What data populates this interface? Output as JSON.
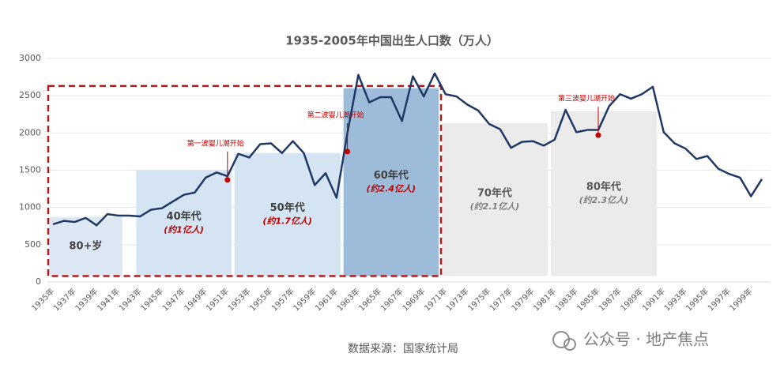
{
  "chart_data": {
    "type": "line",
    "title": "1935-2005年中国出生人口数（万人）",
    "source": "数据来源：国家统计局",
    "watermark": "公众号 · 地产焦点",
    "categories": [
      "1935年",
      null,
      "1937年",
      null,
      "1939年",
      null,
      "1941年",
      null,
      "1943年",
      null,
      "1945年",
      null,
      "1947年",
      null,
      "1949年",
      null,
      "1951年",
      null,
      "1953年",
      null,
      "1955年",
      null,
      "1957年",
      null,
      "1959年",
      null,
      "1961年",
      null,
      "1963年",
      null,
      "1965年",
      null,
      "1967年",
      null,
      "1969年",
      null,
      "1971年",
      null,
      "1973年",
      null,
      "1975年",
      null,
      "1977年",
      null,
      "1979年",
      null,
      "1981年",
      null,
      "1983年",
      null,
      "1985年",
      null,
      "1987年",
      null,
      "1989年",
      null,
      "1991年",
      null,
      "1993年",
      null,
      "1995年",
      null,
      "1997年",
      null,
      "1999年",
      null
    ],
    "series": [
      {
        "name": "出生人口",
        "color": "#1f3864",
        "values": [
          775,
          820,
          805,
          860,
          760,
          910,
          890,
          890,
          880,
          970,
          990,
          1080,
          1170,
          1200,
          1400,
          1470,
          1420,
          1720,
          1670,
          1850,
          1860,
          1730,
          1890,
          1730,
          1300,
          1460,
          1130,
          2000,
          2780,
          2410,
          2480,
          2480,
          2160,
          2760,
          2490,
          2800,
          2520,
          2490,
          2380,
          2300,
          2120,
          2050,
          1800,
          1880,
          1890,
          1830,
          1910,
          2310,
          2010,
          2040,
          2040,
          2360,
          2520,
          2460,
          2520,
          2620,
          2010,
          1860,
          1790,
          1650,
          1690,
          1520,
          1450,
          1400,
          1150,
          1380
        ]
      }
    ],
    "start_year": 1935,
    "ylim": [
      0,
      3000
    ],
    "yticks": [
      0,
      500,
      1000,
      1500,
      2000,
      2500,
      3000
    ],
    "grid": true,
    "regions": [
      {
        "label": "80+岁",
        "start": 1935,
        "end": 1941,
        "bottom": 80,
        "top": 870,
        "color": "#dde8f4",
        "label_color": "#404040"
      },
      {
        "label": "40年代",
        "sublabel": "(约1亿人)",
        "start": 1943,
        "end": 1951,
        "bottom": 80,
        "top": 1500,
        "color": "#d5e4f3",
        "label_color": "#404040",
        "sublabel_color": "#c00000"
      },
      {
        "label": "50年代",
        "sublabel": "(约1.7亿人)",
        "start": 1952,
        "end": 1961,
        "bottom": 80,
        "top": 1730,
        "color": "#d5e4f3",
        "label_color": "#404040",
        "sublabel_color": "#c00000"
      },
      {
        "label": "60年代",
        "sublabel": "(约2.4亿人)",
        "start": 1962,
        "end": 1970,
        "bottom": 80,
        "top": 2600,
        "color": "#9dbcda",
        "label_color": "#404040",
        "sublabel_color": "#c00000"
      },
      {
        "label": "70年代",
        "sublabel": "(约2.1亿人)",
        "start": 1971,
        "end": 1980,
        "bottom": 80,
        "top": 2130,
        "color": "#ebebeb",
        "label_color": "#595959",
        "sublabel_color": "#7f7f7f"
      },
      {
        "label": "80年代",
        "sublabel": "(约2.3亿人)",
        "start": 1981,
        "end": 1990,
        "bottom": 80,
        "top": 2290,
        "color": "#ebebeb",
        "label_color": "#595959",
        "sublabel_color": "#7f7f7f"
      }
    ],
    "highlight": {
      "start": 1935,
      "end": 1970,
      "bottom": 80,
      "top": 2630,
      "color": "#b01c1c"
    },
    "annotations": [
      {
        "text": "第一波婴儿潮开始",
        "x": 1951,
        "y": 1370,
        "color": "#c00000"
      },
      {
        "text": "第二波婴儿潮开始",
        "x": 1962,
        "y": 1750,
        "color": "#c00000"
      },
      {
        "text": "第三波婴儿潮开始",
        "x": 1985,
        "y": 1970,
        "color": "#c00000"
      }
    ]
  }
}
